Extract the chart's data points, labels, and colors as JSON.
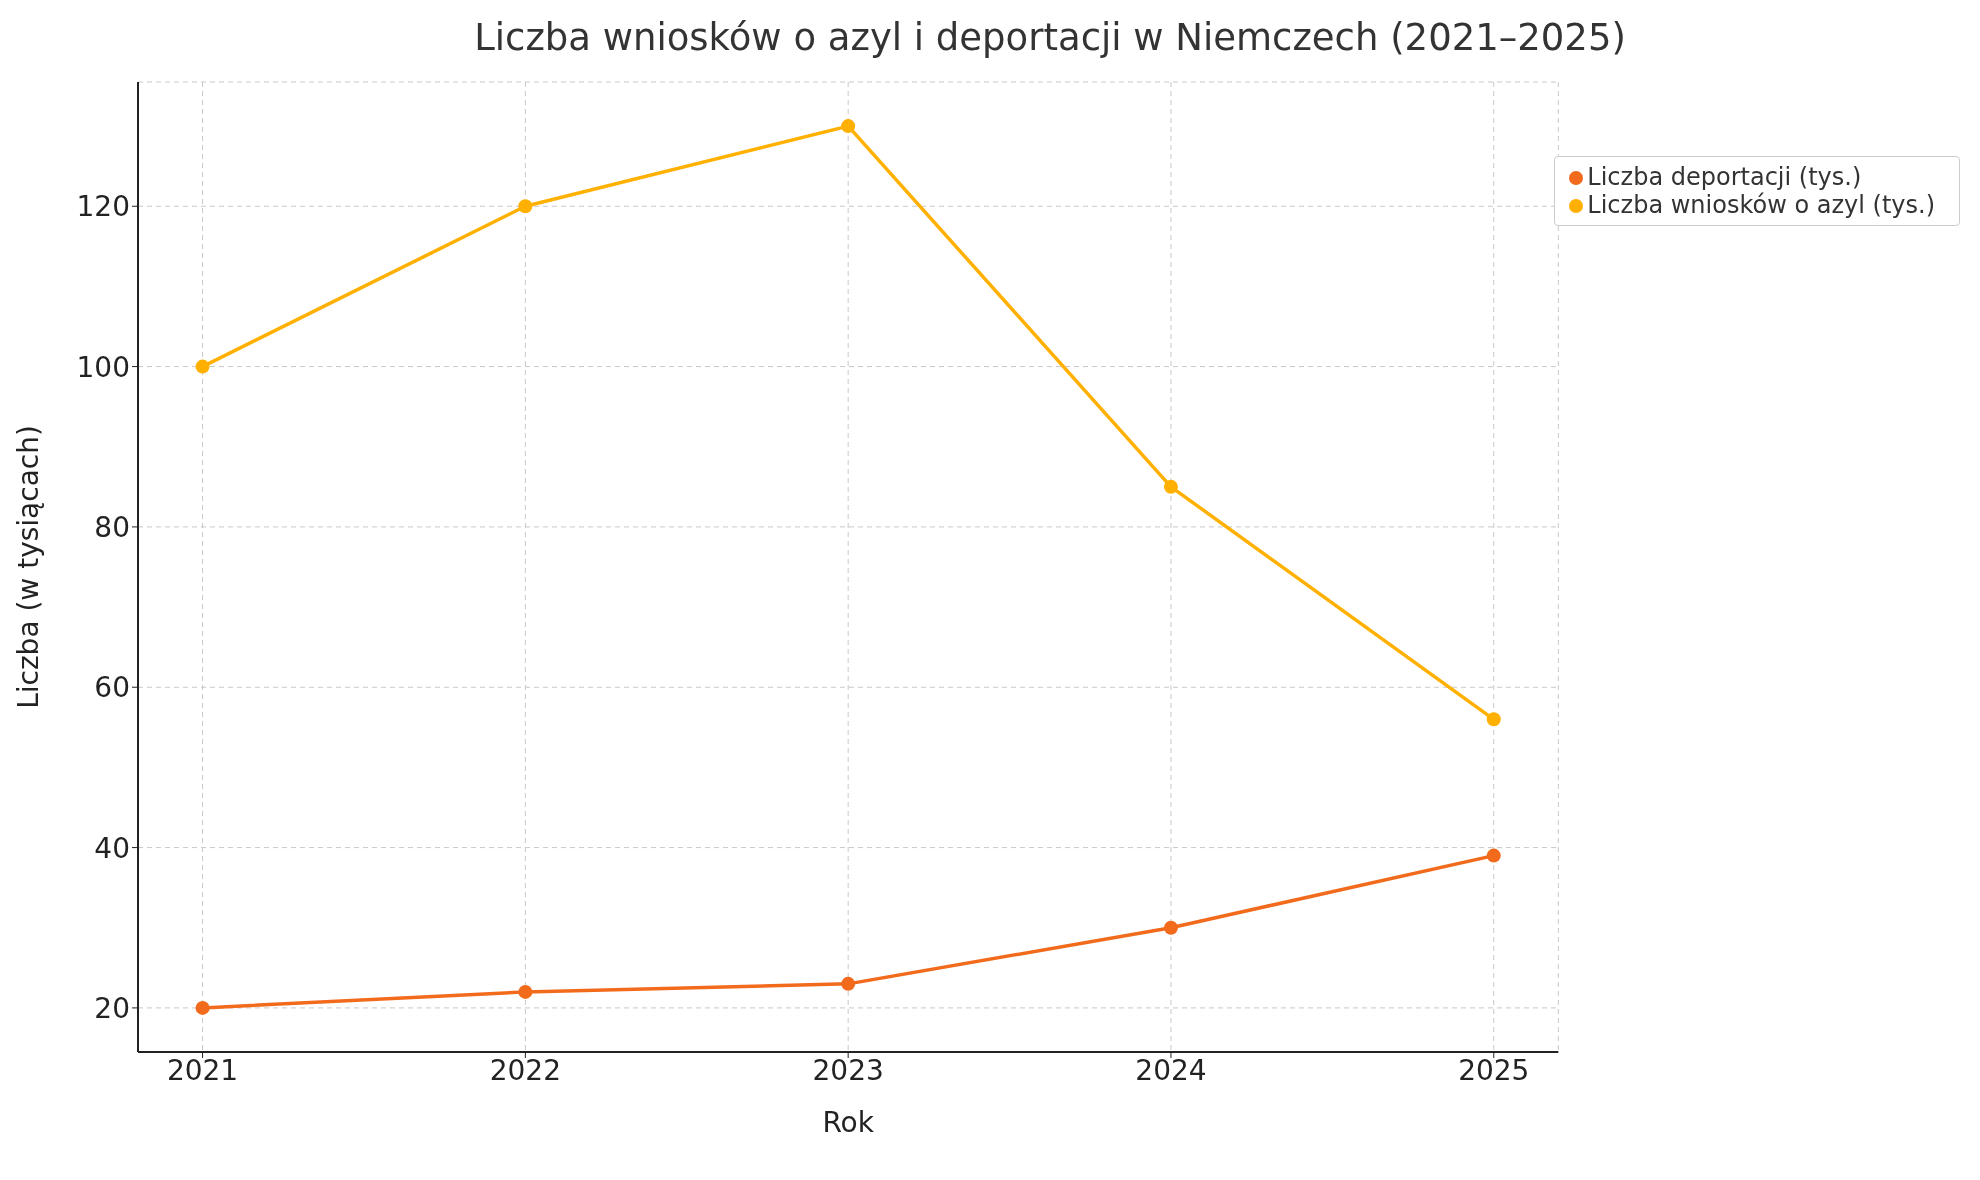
{
  "chart_data": {
    "type": "line",
    "title": "Liczba wniosków o azyl i deportacji w Niemczech (2021–2025)",
    "xlabel": "Rok",
    "ylabel": "Liczba (w tysiącach)",
    "x": [
      2021,
      2022,
      2023,
      2024,
      2025
    ],
    "series": [
      {
        "name": "Liczba wniosków o azyl (tys.)",
        "color": "#ffb000",
        "values": [
          100,
          120,
          130,
          85,
          56
        ]
      },
      {
        "name": "Liczba deportacji (tys.)",
        "color": "#f26b1d",
        "values": [
          20,
          22,
          23,
          30,
          39
        ]
      }
    ],
    "xlim": [
      2020.8,
      2025.2
    ],
    "xticks": [
      2021,
      2022,
      2023,
      2024,
      2025
    ],
    "ylim": [
      14.5,
      135.5
    ],
    "yticks": [
      20,
      40,
      60,
      80,
      100,
      120
    ],
    "grid": true,
    "legend": "top right",
    "marker": "circle",
    "line_style": "solid"
  }
}
